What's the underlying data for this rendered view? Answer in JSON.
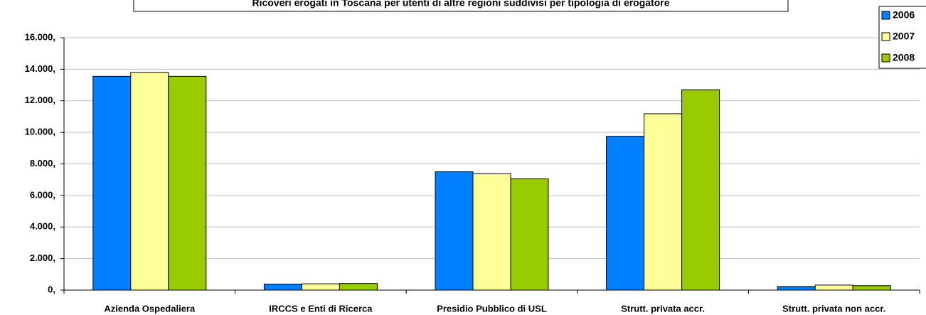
{
  "chart_data": {
    "type": "bar",
    "title": "Ricoveri erogati in Toscana per utenti di altre regioni suddivisi per tipologia di erogatore",
    "categories": [
      "Azienda Ospedaliera",
      "IRCCS e Enti di Ricerca",
      "Presidio Pubblico di USL",
      "Strutt. privata accr.",
      "Strutt. privata non accr."
    ],
    "series": [
      {
        "name": "2006",
        "color": "#0080ff",
        "values": [
          13550,
          380,
          7500,
          9750,
          230
        ]
      },
      {
        "name": "2007",
        "color": "#ffff99",
        "values": [
          13800,
          400,
          7380,
          11180,
          320
        ]
      },
      {
        "name": "2008",
        "color": "#99cc00",
        "values": [
          13550,
          420,
          7050,
          12700,
          280
        ]
      }
    ],
    "ylim": [
      0,
      16000
    ],
    "yticks": [
      {
        "value": 0,
        "label": "0,"
      },
      {
        "value": 2000,
        "label": "2.000,"
      },
      {
        "value": 4000,
        "label": "4.000,"
      },
      {
        "value": 6000,
        "label": "6.000,"
      },
      {
        "value": 8000,
        "label": "8.000,"
      },
      {
        "value": 10000,
        "label": "10.000,"
      },
      {
        "value": 12000,
        "label": "12.000,"
      },
      {
        "value": 14000,
        "label": "14.000,"
      },
      {
        "value": 16000,
        "label": "16.000,"
      }
    ],
    "grid": true
  }
}
